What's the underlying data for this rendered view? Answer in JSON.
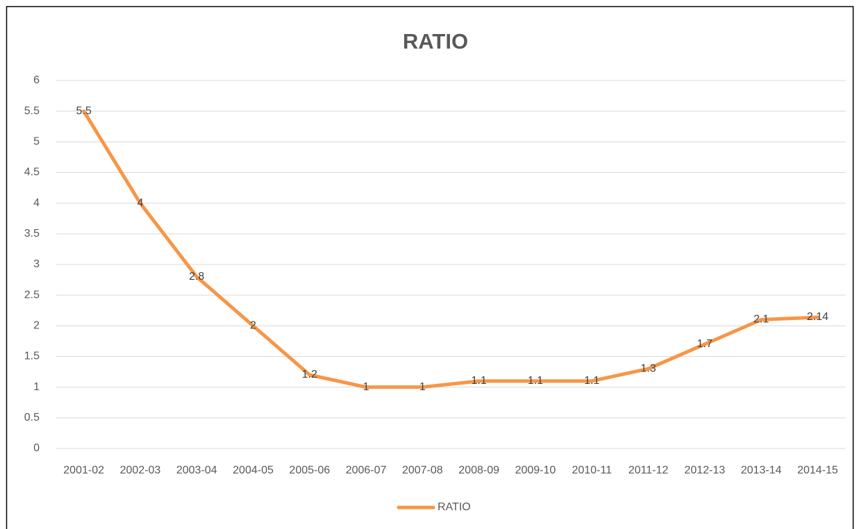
{
  "chart_data": {
    "type": "line",
    "title": "RATIO",
    "categories": [
      "2001-02",
      "2002-03",
      "2003-04",
      "2004-05",
      "2005-06",
      "2006-07",
      "2007-08",
      "2008-09",
      "2009-10",
      "2010-11",
      "2011-12",
      "2012-13",
      "2013-14",
      "2014-15"
    ],
    "series": [
      {
        "name": "RATIO",
        "color": "#f79646",
        "values": [
          5.5,
          4,
          2.8,
          2,
          1.2,
          1,
          1,
          1.1,
          1.1,
          1.1,
          1.3,
          1.7,
          2.1,
          2.14
        ]
      }
    ],
    "ylim": [
      0,
      6
    ],
    "yticks": [
      0,
      0.5,
      1,
      1.5,
      2,
      2.5,
      3,
      3.5,
      4,
      4.5,
      5,
      5.5,
      6
    ],
    "grid": true,
    "legend": "bottom",
    "data_labels": true
  }
}
